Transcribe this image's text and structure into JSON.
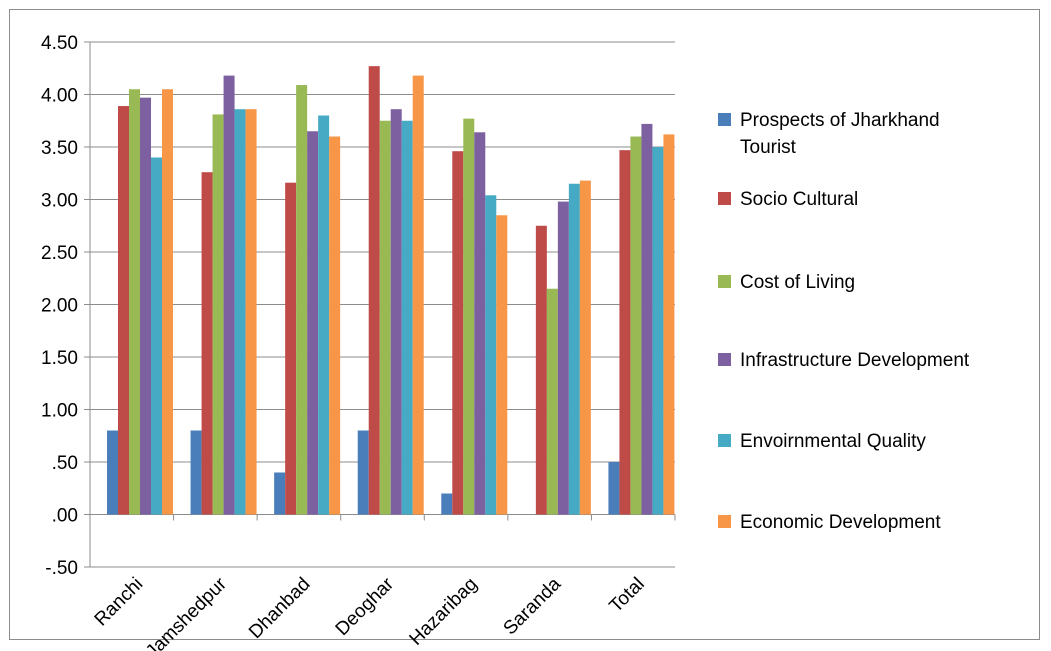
{
  "chart_data": {
    "type": "bar",
    "categories": [
      "Ranchi",
      "Jamshedpur",
      "Dhanbad",
      "Deoghar",
      "Hazaribag",
      "Saranda",
      "Total"
    ],
    "series": [
      {
        "name": "Prospects of Jharkhand Tourist",
        "color": "#4a7ebb",
        "values": [
          0.8,
          0.8,
          0.4,
          0.8,
          0.2,
          0.0,
          0.5
        ]
      },
      {
        "name": "Socio Cultural",
        "color": "#be4b48",
        "values": [
          3.89,
          3.26,
          3.16,
          4.27,
          3.46,
          2.75,
          3.47
        ]
      },
      {
        "name": "Cost of Living",
        "color": "#98b954",
        "values": [
          4.05,
          3.81,
          4.09,
          3.75,
          3.77,
          2.15,
          3.6
        ]
      },
      {
        "name": "Infrastructure Development",
        "color": "#7d60a0",
        "values": [
          3.97,
          4.18,
          3.65,
          3.86,
          3.64,
          2.98,
          3.72
        ]
      },
      {
        "name": "Envoirnmental Quality",
        "color": "#46aac5",
        "values": [
          3.4,
          3.86,
          3.8,
          3.75,
          3.04,
          3.15,
          3.5
        ]
      },
      {
        "name": "Economic Development",
        "color": "#f79646",
        "values": [
          4.05,
          3.86,
          3.6,
          4.18,
          2.85,
          3.18,
          3.62
        ]
      }
    ],
    "yticks": [
      "-.50",
      ".00",
      ".50",
      "1.00",
      "1.50",
      "2.00",
      "2.50",
      "3.00",
      "3.50",
      "4.00",
      "4.50"
    ],
    "ylim": [
      -0.5,
      4.5
    ],
    "grid": true,
    "legend_position": "right",
    "title": "",
    "xlabel": "",
    "ylabel": ""
  }
}
